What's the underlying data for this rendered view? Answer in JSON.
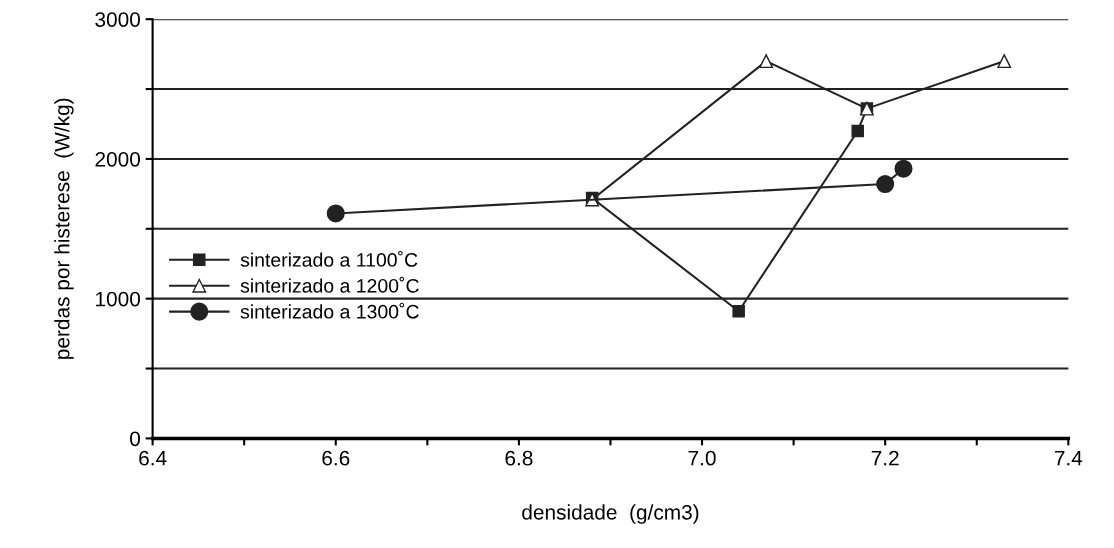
{
  "chart_data": {
    "type": "line",
    "xlabel": "densidade  (g/cm3)",
    "ylabel": "perdas por histerese  (W/kg)",
    "xlim": [
      6.4,
      7.4
    ],
    "ylim": [
      0,
      3000
    ],
    "xticks": [
      6.4,
      {
        "value": 6.5,
        "label": null
      },
      6.6,
      {
        "value": 6.7,
        "label": null
      },
      6.8,
      {
        "value": 6.9,
        "label": null
      },
      {
        "value": 7.0,
        "label": "7.0"
      },
      {
        "value": 7.1,
        "label": null
      },
      7.2,
      {
        "value": 7.3,
        "label": null
      },
      7.4
    ],
    "yticks": [
      0,
      {
        "value": 500,
        "label": null
      },
      1000,
      {
        "value": 1500,
        "label": null
      },
      2000,
      {
        "value": 2500,
        "label": null
      },
      3000
    ],
    "grid": "y",
    "legend": "left",
    "series": [
      {
        "name": "sinterizado a 1100˚C",
        "color": "#222222",
        "marker": "square",
        "x": [
          6.88,
          7.04,
          7.17,
          7.18
        ],
        "values": [
          1720,
          910,
          2200,
          2360
        ]
      },
      {
        "name": "sinterizado a 1200˚C",
        "color": "#222222",
        "marker": "triangle",
        "x": [
          6.88,
          7.07,
          7.18,
          7.33
        ],
        "values": [
          1710,
          2700,
          2360,
          2700
        ]
      },
      {
        "name": "sinterizado a 1300˚C",
        "color": "#222222",
        "marker": "circle",
        "x": [
          6.6,
          7.2,
          7.22
        ],
        "values": [
          1610,
          1820,
          1930
        ]
      }
    ]
  }
}
